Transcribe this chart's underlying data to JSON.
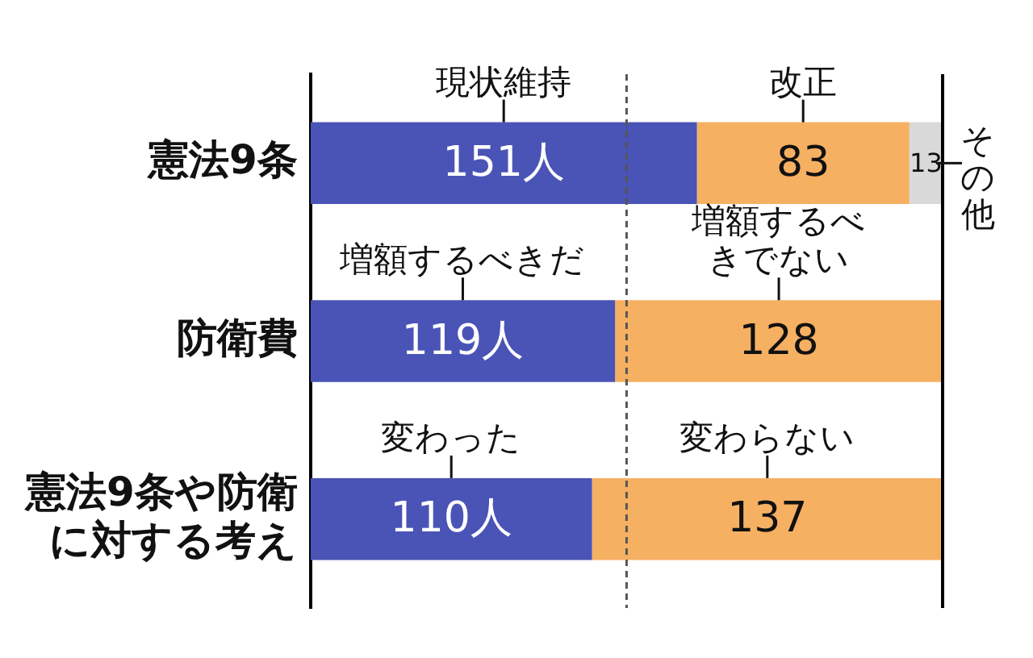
{
  "chart_data": {
    "type": "bar",
    "orientation": "horizontal",
    "stacked": true,
    "categories": [
      "憲法9条",
      "防衛費",
      "憲法9条や防衛に対する考え"
    ],
    "series": [
      {
        "color": "#4a54b6",
        "values": [
          151,
          119,
          110
        ],
        "value_labels": [
          "151人",
          "119人",
          "110人"
        ]
      },
      {
        "color": "#f6b062",
        "values": [
          83,
          128,
          137
        ],
        "value_labels": [
          "83",
          "128",
          "137"
        ]
      },
      {
        "color": "#d9d9d9",
        "values": [
          13,
          null,
          null
        ],
        "value_labels": [
          "13",
          null,
          null
        ]
      }
    ],
    "xlim": [
      0,
      247
    ],
    "tick_labels": "y",
    "grid": false,
    "legend": false,
    "ref_lines": [
      {
        "axis": "x",
        "value": 123.5,
        "line_style": "dashed",
        "color": "#555555"
      },
      {
        "axis": "x",
        "value": 247,
        "line_style": "solid",
        "color": "#000000"
      }
    ],
    "annotations": [
      "現状維持",
      "改正",
      "その他",
      "増額するべきだ",
      "増額するべきでない",
      "変わった",
      "変わらない"
    ]
  }
}
